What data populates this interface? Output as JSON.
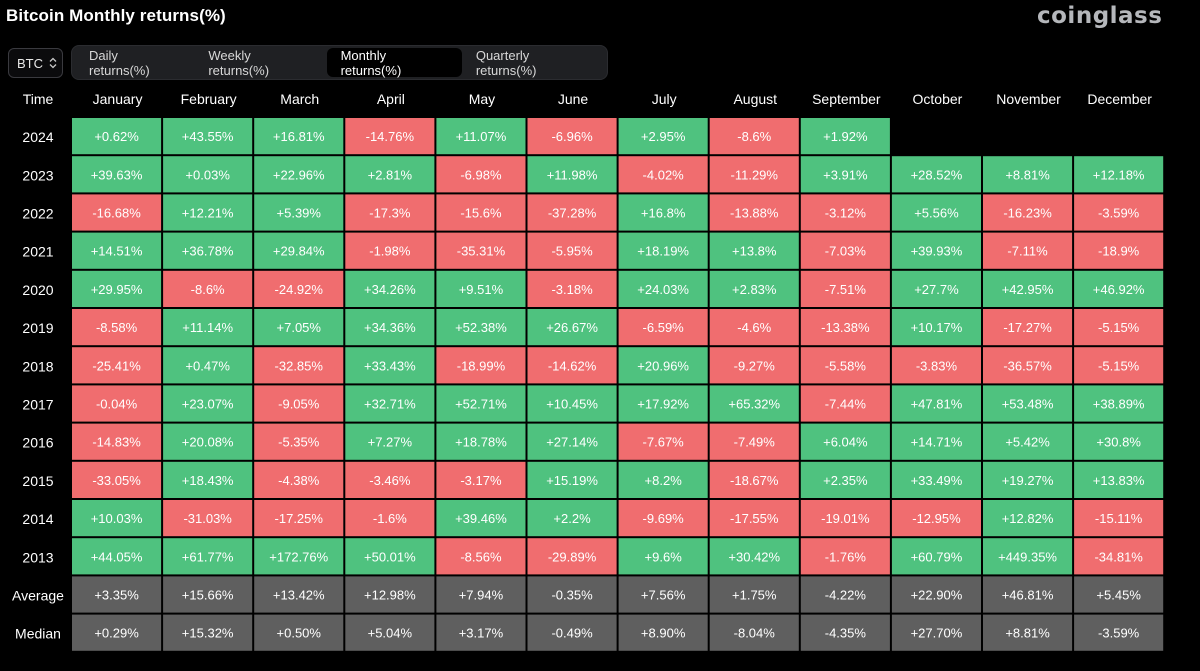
{
  "header": {
    "title": "Bitcoin Monthly returns(%)",
    "brand": "coinglass"
  },
  "asset_select": {
    "value": "BTC",
    "icon": "up-down-chevron-icon"
  },
  "tabs": [
    {
      "label": "Daily returns(%)",
      "active": false
    },
    {
      "label": "Weekly returns(%)",
      "active": false
    },
    {
      "label": "Monthly returns(%)",
      "active": true
    },
    {
      "label": "Quarterly returns(%)",
      "active": false
    }
  ],
  "colors": {
    "positive": "#4fc27f",
    "negative": "#f06d6f",
    "summary": "#5f5f5f",
    "background": "#000000"
  },
  "chart_data": {
    "type": "table",
    "corner_label": "Time",
    "columns": [
      "January",
      "February",
      "March",
      "April",
      "May",
      "June",
      "July",
      "August",
      "September",
      "October",
      "November",
      "December"
    ],
    "rows": [
      {
        "label": "2024",
        "kind": "year",
        "values": [
          "+0.62%",
          "+43.55%",
          "+16.81%",
          "-14.76%",
          "+11.07%",
          "-6.96%",
          "+2.95%",
          "-8.6%",
          "+1.92%",
          null,
          null,
          null
        ]
      },
      {
        "label": "2023",
        "kind": "year",
        "values": [
          "+39.63%",
          "+0.03%",
          "+22.96%",
          "+2.81%",
          "-6.98%",
          "+11.98%",
          "-4.02%",
          "-11.29%",
          "+3.91%",
          "+28.52%",
          "+8.81%",
          "+12.18%"
        ]
      },
      {
        "label": "2022",
        "kind": "year",
        "values": [
          "-16.68%",
          "+12.21%",
          "+5.39%",
          "-17.3%",
          "-15.6%",
          "-37.28%",
          "+16.8%",
          "-13.88%",
          "-3.12%",
          "+5.56%",
          "-16.23%",
          "-3.59%"
        ]
      },
      {
        "label": "2021",
        "kind": "year",
        "values": [
          "+14.51%",
          "+36.78%",
          "+29.84%",
          "-1.98%",
          "-35.31%",
          "-5.95%",
          "+18.19%",
          "+13.8%",
          "-7.03%",
          "+39.93%",
          "-7.11%",
          "-18.9%"
        ]
      },
      {
        "label": "2020",
        "kind": "year",
        "values": [
          "+29.95%",
          "-8.6%",
          "-24.92%",
          "+34.26%",
          "+9.51%",
          "-3.18%",
          "+24.03%",
          "+2.83%",
          "-7.51%",
          "+27.7%",
          "+42.95%",
          "+46.92%"
        ]
      },
      {
        "label": "2019",
        "kind": "year",
        "values": [
          "-8.58%",
          "+11.14%",
          "+7.05%",
          "+34.36%",
          "+52.38%",
          "+26.67%",
          "-6.59%",
          "-4.6%",
          "-13.38%",
          "+10.17%",
          "-17.27%",
          "-5.15%"
        ]
      },
      {
        "label": "2018",
        "kind": "year",
        "values": [
          "-25.41%",
          "+0.47%",
          "-32.85%",
          "+33.43%",
          "-18.99%",
          "-14.62%",
          "+20.96%",
          "-9.27%",
          "-5.58%",
          "-3.83%",
          "-36.57%",
          "-5.15%"
        ]
      },
      {
        "label": "2017",
        "kind": "year",
        "values": [
          "-0.04%",
          "+23.07%",
          "-9.05%",
          "+32.71%",
          "+52.71%",
          "+10.45%",
          "+17.92%",
          "+65.32%",
          "-7.44%",
          "+47.81%",
          "+53.48%",
          "+38.89%"
        ]
      },
      {
        "label": "2016",
        "kind": "year",
        "values": [
          "-14.83%",
          "+20.08%",
          "-5.35%",
          "+7.27%",
          "+18.78%",
          "+27.14%",
          "-7.67%",
          "-7.49%",
          "+6.04%",
          "+14.71%",
          "+5.42%",
          "+30.8%"
        ]
      },
      {
        "label": "2015",
        "kind": "year",
        "values": [
          "-33.05%",
          "+18.43%",
          "-4.38%",
          "-3.46%",
          "-3.17%",
          "+15.19%",
          "+8.2%",
          "-18.67%",
          "+2.35%",
          "+33.49%",
          "+19.27%",
          "+13.83%"
        ]
      },
      {
        "label": "2014",
        "kind": "year",
        "values": [
          "+10.03%",
          "-31.03%",
          "-17.25%",
          "-1.6%",
          "+39.46%",
          "+2.2%",
          "-9.69%",
          "-17.55%",
          "-19.01%",
          "-12.95%",
          "+12.82%",
          "-15.11%"
        ]
      },
      {
        "label": "2013",
        "kind": "year",
        "values": [
          "+44.05%",
          "+61.77%",
          "+172.76%",
          "+50.01%",
          "-8.56%",
          "-29.89%",
          "+9.6%",
          "+30.42%",
          "-1.76%",
          "+60.79%",
          "+449.35%",
          "-34.81%"
        ]
      },
      {
        "label": "Average",
        "kind": "summary",
        "values": [
          "+3.35%",
          "+15.66%",
          "+13.42%",
          "+12.98%",
          "+7.94%",
          "-0.35%",
          "+7.56%",
          "+1.75%",
          "-4.22%",
          "+22.90%",
          "+46.81%",
          "+5.45%"
        ]
      },
      {
        "label": "Median",
        "kind": "summary",
        "values": [
          "+0.29%",
          "+15.32%",
          "+0.50%",
          "+5.04%",
          "+3.17%",
          "-0.49%",
          "+8.90%",
          "-8.04%",
          "-4.35%",
          "+27.70%",
          "+8.81%",
          "-3.59%"
        ]
      }
    ]
  }
}
